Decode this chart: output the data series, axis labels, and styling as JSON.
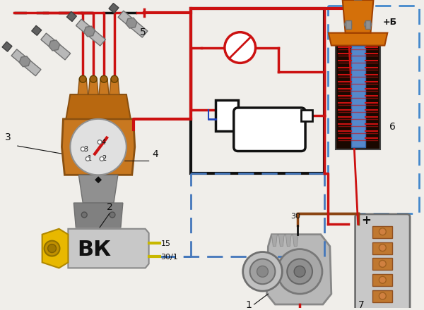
{
  "bg_color": "#f0eeea",
  "red": "#cc1111",
  "black": "#111111",
  "brown": "#8b4513",
  "blue_dash": "#4488cc",
  "org": "#d4700a",
  "lgray": "#b8b8b8",
  "dgray": "#707070",
  "yellow": "#f0c000",
  "blue": "#4477bb",
  "dark_body": "#1a0800",
  "label_color": "#111111"
}
